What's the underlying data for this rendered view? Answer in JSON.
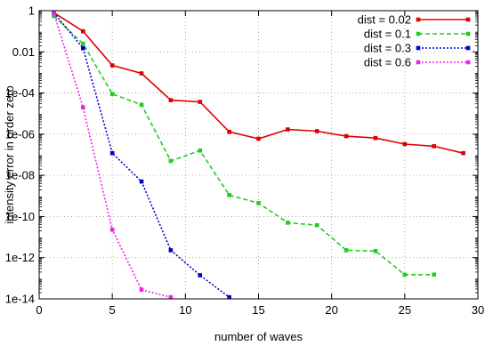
{
  "chart_data": {
    "type": "line",
    "xlabel": "number of waves",
    "ylabel": "intensity error in order zero",
    "x_scale": "linear",
    "y_scale": "log",
    "xlim": [
      0,
      30
    ],
    "ylim": [
      1e-14,
      1
    ],
    "xticks": [
      0,
      5,
      10,
      15,
      20,
      25,
      30
    ],
    "xtick_labels": [
      "0",
      "5",
      "10",
      "15",
      "20",
      "25",
      "30"
    ],
    "yticks": [
      1,
      0.01,
      0.0001,
      1e-06,
      1e-08,
      1e-10,
      1e-12,
      1e-14
    ],
    "ytick_labels": [
      "1",
      "0.01",
      "1e-04",
      "1e-06",
      "1e-08",
      "1e-10",
      "1e-12",
      "1e-14"
    ],
    "grid": true,
    "legend_position": "top-right",
    "series": [
      {
        "name": "dist = 0.02",
        "color": "#dd0000",
        "dash": "solid",
        "x": [
          1,
          3,
          5,
          7,
          9,
          11,
          13,
          15,
          17,
          19,
          21,
          23,
          25,
          27,
          29
        ],
        "y": [
          0.8,
          0.1,
          0.0022,
          0.0009,
          4.5e-05,
          3.7e-05,
          1.3e-06,
          6e-07,
          1.7e-06,
          1.4e-06,
          8e-07,
          6.5e-07,
          3.3e-07,
          2.6e-07,
          1.2e-07
        ]
      },
      {
        "name": "dist = 0.1",
        "color": "#22cc22",
        "dash": "dashed",
        "x": [
          1,
          3,
          5,
          7,
          9,
          11,
          13,
          15,
          17,
          19,
          21,
          23,
          25,
          27
        ],
        "y": [
          0.55,
          0.025,
          9e-05,
          2.7e-05,
          5e-08,
          1.6e-07,
          1.1e-09,
          4.5e-10,
          5e-11,
          3.8e-11,
          2.3e-12,
          2.1e-12,
          1.5e-13,
          1.5e-13
        ]
      },
      {
        "name": "dist = 0.3",
        "color": "#0000cc",
        "dash": "dotted",
        "x": [
          1,
          3,
          5,
          7,
          9,
          11,
          13
        ],
        "y": [
          0.8,
          0.015,
          1.2e-07,
          5e-09,
          2.3e-12,
          1.4e-13,
          1.2e-14
        ]
      },
      {
        "name": "dist = 0.6",
        "color": "#ee22ee",
        "dash": "dotted",
        "x": [
          1,
          3,
          5,
          7,
          9
        ],
        "y": [
          0.8,
          2e-05,
          2.3e-11,
          2.8e-14,
          1.2e-14
        ]
      }
    ]
  }
}
